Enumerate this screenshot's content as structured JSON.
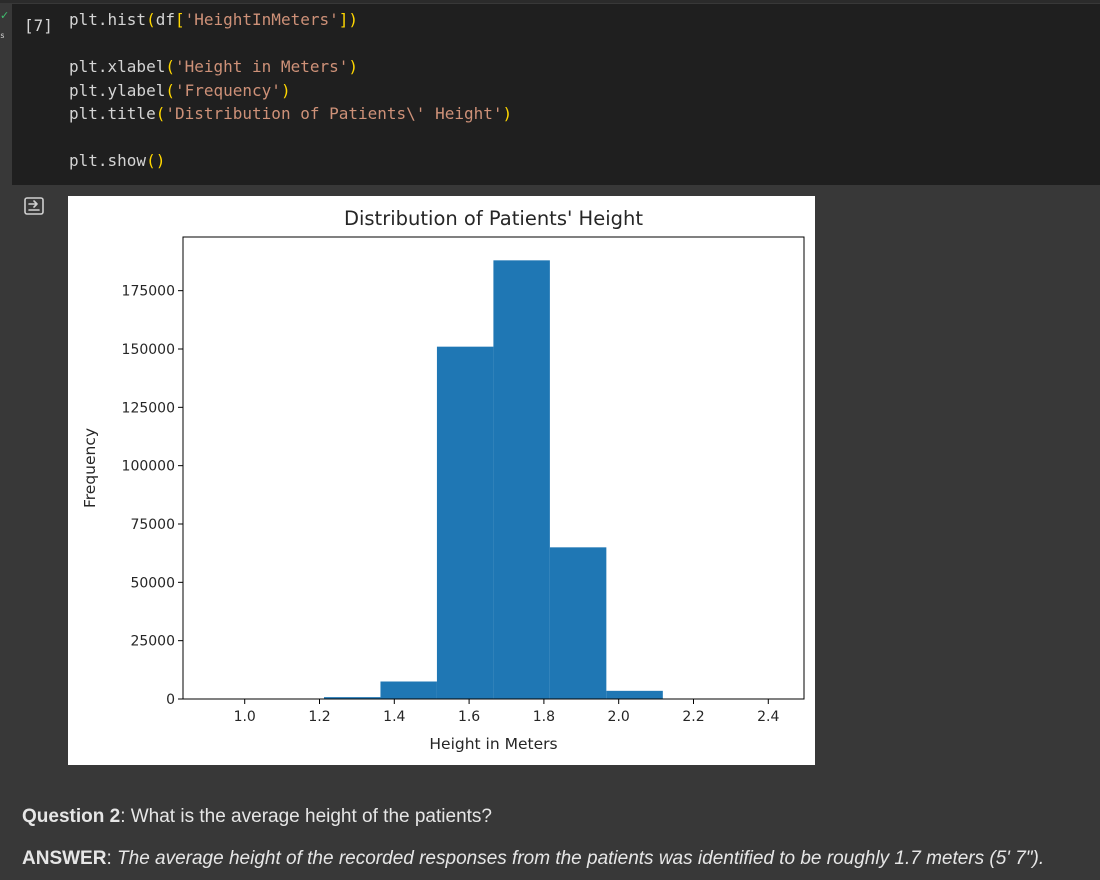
{
  "cell": {
    "execution_count": "[7]",
    "status_icon": "checkmark-icon",
    "status_glyph": "✓",
    "exec_time": "s",
    "code_lines": [
      [
        {
          "t": "plt.hist"
        },
        {
          "t": "(",
          "c": "p"
        },
        {
          "t": "df"
        },
        {
          "t": "[",
          "c": "p"
        },
        {
          "t": "'HeightInMeters'",
          "c": "s"
        },
        {
          "t": "]",
          "c": "p"
        },
        {
          "t": ")",
          "c": "p"
        }
      ],
      [],
      [
        {
          "t": "plt.xlabel"
        },
        {
          "t": "(",
          "c": "p"
        },
        {
          "t": "'Height in Meters'",
          "c": "s"
        },
        {
          "t": ")",
          "c": "p"
        }
      ],
      [
        {
          "t": "plt.ylabel"
        },
        {
          "t": "(",
          "c": "p"
        },
        {
          "t": "'Frequency'",
          "c": "s"
        },
        {
          "t": ")",
          "c": "p"
        }
      ],
      [
        {
          "t": "plt.title"
        },
        {
          "t": "(",
          "c": "p"
        },
        {
          "t": "'Distribution of Patients\\' Height'",
          "c": "s"
        },
        {
          "t": ")",
          "c": "p"
        }
      ],
      [],
      [
        {
          "t": "plt.show"
        },
        {
          "t": "()",
          "c": "p"
        }
      ]
    ]
  },
  "output_toggle_icon": "output-toggle-icon",
  "chart_data": {
    "type": "bar",
    "title": "Distribution of Patients' Height",
    "xlabel": "Height in Meters",
    "ylabel": "Frequency",
    "bin_edges": [
      0.91,
      1.061,
      1.212,
      1.363,
      1.514,
      1.665,
      1.816,
      1.967,
      2.118,
      2.269,
      2.42
    ],
    "values": [
      40,
      60,
      800,
      7500,
      151000,
      188000,
      65000,
      3500,
      150,
      30
    ],
    "xlim": [
      0.835,
      2.4955
    ],
    "ylim": [
      0,
      198000
    ],
    "xticks": [
      1.0,
      1.2,
      1.4,
      1.6,
      1.8,
      2.0,
      2.2,
      2.4
    ],
    "xtick_labels": [
      "1.0",
      "1.2",
      "1.4",
      "1.6",
      "1.8",
      "2.0",
      "2.2",
      "2.4"
    ],
    "yticks": [
      0,
      25000,
      50000,
      75000,
      100000,
      125000,
      150000,
      175000
    ],
    "ytick_labels": [
      "0",
      "25000",
      "50000",
      "75000",
      "100000",
      "125000",
      "150000",
      "175000"
    ],
    "bar_color": "#1f77b4",
    "grid": false
  },
  "text": {
    "question_label": "Question 2",
    "question_body": ": What is the average height of the patients?",
    "answer_label": "ANSWER",
    "answer_sep": ": ",
    "answer_body": "The average height of the recorded responses from the patients was identified to be roughly 1.7 meters (5' 7\")."
  }
}
